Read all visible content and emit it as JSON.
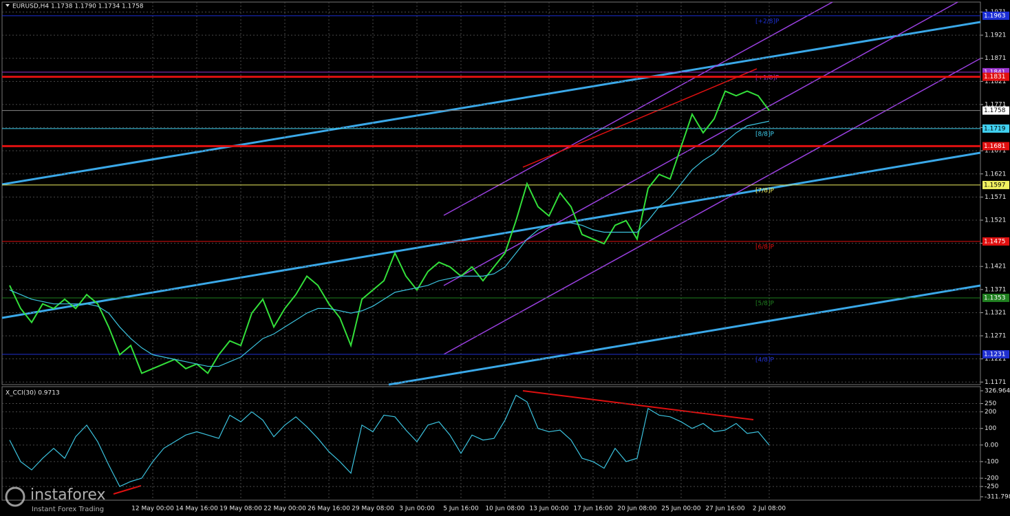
{
  "chart_data": [
    {
      "type": "line",
      "title": "EURUSD,H4 1.1738 1.1790 1.1734 1.1758",
      "categories": [
        null,
        null,
        null,
        null,
        null,
        null,
        null,
        null,
        null,
        null,
        null,
        null,
        null,
        "12 May 00:00",
        null,
        null,
        null,
        "14 May 16:00",
        null,
        null,
        null,
        "19 May 08:00",
        null,
        null,
        null,
        "22 May 00:00",
        null,
        null,
        null,
        "26 May 16:00",
        null,
        null,
        null,
        "29 May 08:00",
        null,
        null,
        null,
        "3 Jun 00:00",
        null,
        null,
        null,
        "5 Jun 16:00",
        null,
        null,
        null,
        "10 Jun 08:00",
        null,
        null,
        null,
        "13 Jun 00:00",
        null,
        null,
        null,
        "17 Jun 16:00",
        null,
        null,
        null,
        "20 Jun 08:00",
        null,
        null,
        null,
        "25 Jun 00:00",
        null,
        null,
        null,
        "27 Jun 16:00",
        null,
        null,
        null,
        "2 Jul 08:00"
      ],
      "series": [
        {
          "color": "#33e03a",
          "values": [
            1.138,
            1.133,
            1.13,
            1.134,
            1.133,
            1.135,
            1.133,
            1.136,
            1.134,
            1.129,
            1.123,
            1.125,
            1.119,
            1.12,
            1.121,
            1.122,
            1.12,
            1.121,
            1.119,
            1.123,
            1.126,
            1.125,
            1.132,
            1.135,
            1.129,
            1.133,
            1.136,
            1.14,
            1.138,
            1.134,
            1.131,
            1.125,
            1.135,
            1.137,
            1.139,
            1.145,
            1.14,
            1.137,
            1.141,
            1.143,
            1.142,
            1.14,
            1.142,
            1.139,
            1.142,
            1.145,
            1.152,
            1.16,
            1.155,
            1.153,
            1.158,
            1.155,
            1.149,
            1.148,
            1.147,
            1.151,
            1.152,
            1.148,
            1.159,
            1.162,
            1.161,
            1.168,
            1.175,
            1.171,
            1.174,
            1.18,
            1.179,
            1.18,
            1.179,
            1.1758
          ]
        },
        {
          "color": "#3cc4e0",
          "values": [
            1.137,
            1.136,
            1.135,
            1.1345,
            1.134,
            1.134,
            1.134,
            1.134,
            1.1335,
            1.132,
            1.129,
            1.1265,
            1.1245,
            1.123,
            1.1225,
            1.122,
            1.1215,
            1.121,
            1.1205,
            1.1205,
            1.1215,
            1.1225,
            1.1245,
            1.1265,
            1.1275,
            1.129,
            1.1305,
            1.132,
            1.133,
            1.133,
            1.1325,
            1.132,
            1.1325,
            1.1335,
            1.135,
            1.1365,
            1.137,
            1.1375,
            1.138,
            1.139,
            1.1395,
            1.14,
            1.14,
            1.14,
            1.1405,
            1.142,
            1.145,
            1.148,
            1.15,
            1.151,
            1.1515,
            1.1515,
            1.151,
            1.15,
            1.1495,
            1.1495,
            1.1495,
            1.1495,
            1.152,
            1.155,
            1.157,
            1.16,
            1.163,
            1.165,
            1.1665,
            1.169,
            1.171,
            1.1725,
            1.173,
            1.1735
          ]
        }
      ],
      "ylim": [
        1.1164,
        1.1997
      ],
      "yticks": [
        1.1171,
        1.1221,
        1.1271,
        1.1321,
        1.1371,
        1.1421,
        1.1471,
        1.1521,
        1.1571,
        1.1621,
        1.1671,
        1.1721,
        1.1771,
        1.1821,
        1.1871,
        1.1921,
        1.1971
      ],
      "grid": true,
      "levels": [
        {
          "name": "[+2/8]P",
          "value": 1.1963,
          "color": "#1c2fd6"
        },
        {
          "name": "[+1/8]P",
          "value": 1.1841,
          "color": "#9933cc"
        },
        {
          "value": 1.1831,
          "color": "#e01010"
        },
        {
          "value": 1.1758,
          "color": "#ffffff"
        },
        {
          "name": "[8/8]P",
          "value": 1.1719,
          "color": "#40d0f0"
        },
        {
          "value": 1.1681,
          "color": "#e01010"
        },
        {
          "name": "[7/8]P",
          "value": 1.1597,
          "color": "#f0f060"
        },
        {
          "name": "[6/8]P",
          "value": 1.1475,
          "color": "#e01010"
        },
        {
          "name": "[5/8]P",
          "value": 1.1353,
          "color": "#208020"
        },
        {
          "name": "[4/8]P",
          "value": 1.1231,
          "color": "#2030d0"
        }
      ]
    },
    {
      "type": "line",
      "title": "X_CCI(30) 0.9713",
      "series": [
        {
          "color": "#3cc4e0",
          "values": [
            30,
            -100,
            -150,
            -80,
            -20,
            -80,
            50,
            120,
            20,
            -120,
            -250,
            -220,
            -200,
            -100,
            -20,
            20,
            60,
            80,
            60,
            40,
            180,
            140,
            200,
            150,
            50,
            120,
            170,
            110,
            40,
            -40,
            -100,
            -170,
            120,
            80,
            180,
            170,
            90,
            20,
            120,
            140,
            60,
            -50,
            60,
            30,
            40,
            150,
            300,
            260,
            100,
            80,
            90,
            30,
            -80,
            -100,
            -140,
            -20,
            -100,
            -80,
            220,
            180,
            170,
            140,
            100,
            130,
            80,
            90,
            130,
            70,
            80,
            0
          ]
        }
      ],
      "ylim": [
        -311.798,
        326.9647
      ],
      "yticks": [
        -311.798,
        -250,
        -200,
        -100,
        {
          "value": 0,
          "label": "0.00"
        },
        100,
        200,
        250,
        326.9647
      ],
      "grid": true
    }
  ],
  "watermark": {
    "brand": "instaforex",
    "tagline": "Instant Forex Trading"
  }
}
